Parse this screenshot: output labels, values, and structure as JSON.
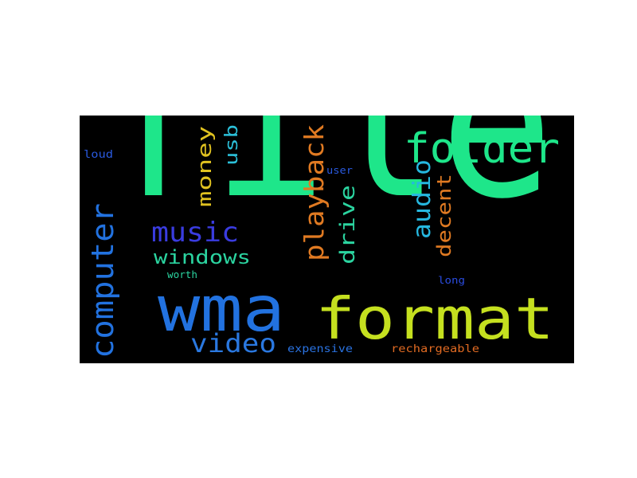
{
  "wordcloud": {
    "background": "#000000",
    "words": [
      {
        "text": "file",
        "color": "#1ee68a"
      },
      {
        "text": "format",
        "color": "#c5e01f"
      },
      {
        "text": "folder",
        "color": "#1ee68a"
      },
      {
        "text": "wma",
        "color": "#2272e0"
      },
      {
        "text": "computer",
        "color": "#2272e0"
      },
      {
        "text": "music",
        "color": "#3a3ce0"
      },
      {
        "text": "windows",
        "color": "#2bd4a0"
      },
      {
        "text": "video",
        "color": "#2a78e0"
      },
      {
        "text": "money",
        "color": "#e0c220"
      },
      {
        "text": "usb",
        "color": "#2bbfd8"
      },
      {
        "text": "playback",
        "color": "#e07a22"
      },
      {
        "text": "drive",
        "color": "#2bd4a0"
      },
      {
        "text": "audio",
        "color": "#26b8e0"
      },
      {
        "text": "decent",
        "color": "#e07a22"
      },
      {
        "text": "loud",
        "color": "#2a5ae0"
      },
      {
        "text": "user",
        "color": "#2a5ae0"
      },
      {
        "text": "worth",
        "color": "#2bd4a0"
      },
      {
        "text": "long",
        "color": "#2a4ce0"
      },
      {
        "text": "expensive",
        "color": "#2a72e0"
      },
      {
        "text": "rechargeable",
        "color": "#e06a22"
      }
    ]
  }
}
